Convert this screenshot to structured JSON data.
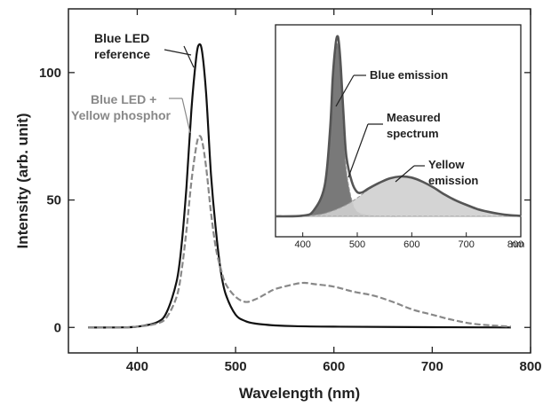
{
  "chart_data": [
    {
      "type": "line",
      "title": "",
      "xlabel": "Wavelength (nm)",
      "ylabel": "Intensity (arb. unit)",
      "xlim": [
        330,
        800
      ],
      "ylim": [
        -10,
        125
      ],
      "xticks": [
        400,
        500,
        600,
        700,
        800
      ],
      "yticks": [
        0,
        50,
        100
      ],
      "grid": false,
      "series": [
        {
          "name": "Blue LED reference",
          "style": "solid",
          "color": "#111111",
          "x": [
            350,
            380,
            400,
            420,
            430,
            440,
            445,
            450,
            455,
            460,
            463,
            466,
            470,
            475,
            480,
            485,
            490,
            500,
            510,
            520,
            540,
            560,
            600,
            700,
            780
          ],
          "y": [
            0,
            0,
            0.3,
            2,
            6,
            18,
            32,
            55,
            85,
            106,
            111,
            108,
            92,
            60,
            38,
            22,
            13,
            5,
            2.5,
            1.5,
            0.8,
            0.5,
            0.3,
            0.1,
            0
          ]
        },
        {
          "name": "Blue LED + Yellow phosphor",
          "style": "dashed",
          "color": "#888888",
          "x": [
            350,
            380,
            400,
            420,
            430,
            440,
            445,
            450,
            455,
            460,
            463,
            466,
            470,
            475,
            480,
            485,
            490,
            500,
            510,
            520,
            530,
            540,
            560,
            570,
            580,
            600,
            620,
            640,
            660,
            680,
            700,
            720,
            740,
            760,
            780
          ],
          "y": [
            0,
            0,
            0.3,
            1.5,
            4,
            12,
            22,
            38,
            57,
            71,
            75,
            73,
            63,
            45,
            31,
            23,
            17,
            12,
            10,
            11,
            13,
            15,
            17,
            17.5,
            17,
            16,
            14,
            12.5,
            10,
            7,
            5,
            3,
            1.5,
            0.8,
            0.3
          ]
        }
      ],
      "annotations": [
        {
          "text_lines": [
            "Blue LED",
            "reference"
          ],
          "series": "Blue LED reference"
        },
        {
          "text_lines": [
            "Blue LED +",
            "Yellow phosphor"
          ],
          "series": "Blue LED + Yellow phosphor"
        }
      ]
    },
    {
      "type": "area",
      "inset": true,
      "xlim": [
        350,
        800
      ],
      "xunit": "nm",
      "xticks": [
        400,
        500,
        600,
        700,
        800
      ],
      "series": [
        {
          "name": "Blue emission",
          "style": "fill",
          "color": "#6a6a6a",
          "x": [
            350,
            400,
            420,
            440,
            450,
            455,
            460,
            463,
            466,
            470,
            475,
            480,
            490,
            500,
            520,
            560,
            600,
            800
          ],
          "y": [
            0,
            0.3,
            2,
            12,
            35,
            57,
            71,
            75,
            73,
            60,
            38,
            20,
            7,
            2,
            0.5,
            0,
            0,
            0
          ]
        },
        {
          "name": "Yellow emission",
          "style": "fill",
          "color": "#cfcfcf",
          "x": [
            350,
            420,
            450,
            480,
            500,
            520,
            540,
            560,
            580,
            600,
            620,
            640,
            660,
            680,
            700,
            720,
            740,
            760,
            780,
            800
          ],
          "y": [
            0,
            0.5,
            2,
            5,
            8,
            11.5,
            14.5,
            16.5,
            17.3,
            16.8,
            15,
            12.5,
            9.5,
            7,
            5,
            3.2,
            2,
            1.1,
            0.5,
            0.2
          ]
        },
        {
          "name": "Measured spectrum",
          "style": "solid",
          "color": "#555555",
          "x": [
            350,
            400,
            420,
            440,
            450,
            455,
            460,
            463,
            466,
            470,
            475,
            480,
            490,
            500,
            510,
            520,
            540,
            560,
            580,
            600,
            620,
            640,
            660,
            680,
            700,
            720,
            740,
            760,
            780,
            800
          ],
          "y": [
            0,
            0.3,
            2.5,
            13,
            37,
            60,
            74,
            78,
            76,
            64,
            43,
            26,
            15,
            10.5,
            10.5,
            12,
            14.5,
            16.5,
            17.3,
            16.8,
            15,
            12.5,
            9.5,
            7,
            5,
            3.2,
            2,
            1.1,
            0.5,
            0.2
          ]
        }
      ],
      "annotations": [
        {
          "text_lines": [
            "Blue emission"
          ],
          "series": "Blue emission"
        },
        {
          "text_lines": [
            "Measured",
            "spectrum"
          ],
          "series": "Measured spectrum"
        },
        {
          "text_lines": [
            "Yellow",
            "emission"
          ],
          "series": "Yellow emission"
        }
      ]
    }
  ]
}
